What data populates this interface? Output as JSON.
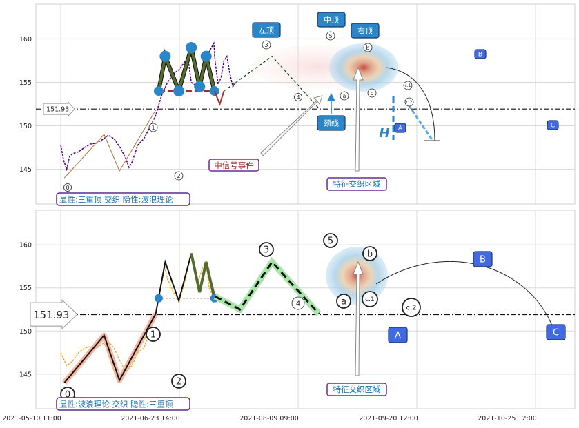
{
  "chart_data": [
    {
      "type": "line",
      "panel": "top",
      "ylim": [
        141,
        164
      ],
      "yticks": [
        145,
        150,
        155,
        160
      ],
      "grid": true,
      "reference_line": {
        "value": 151.93,
        "label": "151.93",
        "style": "dash-dot"
      },
      "series": [
        {
          "values": [
            [
              0,
              147.8
            ],
            [
              0.5,
              146.0
            ],
            [
              1,
              145.0
            ],
            [
              1.5,
              146.5
            ],
            [
              2,
              146.8
            ],
            [
              3,
              147.0
            ],
            [
              4,
              147.5
            ],
            [
              5,
              147.9
            ],
            [
              6,
              148.0
            ],
            [
              7,
              148.4
            ],
            [
              8,
              148.9
            ],
            [
              9,
              148.5
            ],
            [
              10,
              147.5
            ],
            [
              11,
              146.2
            ],
            [
              11.5,
              145.2
            ],
            [
              12,
              145.8
            ],
            [
              13,
              147.8
            ],
            [
              14,
              148.5
            ],
            [
              15,
              149.8
            ],
            [
              16,
              151.2
            ],
            [
              17,
              153.5
            ],
            [
              18,
              155.0
            ],
            [
              19,
              156.0
            ],
            [
              20,
              156.5
            ],
            [
              20.5,
              157.0
            ],
            [
              21,
              157.5
            ],
            [
              21.5,
              157.5
            ],
            [
              22,
              155.0
            ],
            [
              23,
              154.5
            ],
            [
              24,
              156.5
            ],
            [
              25,
              158.5
            ],
            [
              25.8,
              159.5
            ],
            [
              26,
              157.5
            ],
            [
              26.5,
              154.8
            ],
            [
              27,
              155.5
            ],
            [
              27.5,
              157.5
            ],
            [
              28,
              158.0
            ],
            [
              28.5,
              156.0
            ],
            [
              29,
              154.5
            ],
            [
              29.5,
              155.0
            ]
          ]
        },
        {
          "name": "wave",
          "values": [
            [
              0.6,
              144.0
            ],
            [
              7.3,
              149.0
            ],
            [
              9.9,
              144.8
            ],
            [
              16,
              151.8
            ],
            [
              17.6,
              158.0
            ],
            [
              19.9,
              154.0
            ],
            [
              22,
              159.0
            ],
            [
              23.4,
              154.5
            ],
            [
              24.5,
              158.0
            ],
            [
              26,
              154.5
            ]
          ]
        },
        {
          "name": "triple-top",
          "values": [
            [
              16.5,
              154.0
            ],
            [
              17.6,
              158.0
            ],
            [
              19.9,
              154.0
            ],
            [
              22,
              159.0
            ],
            [
              23.4,
              154.5
            ],
            [
              24.5,
              158.0
            ],
            [
              25.9,
              154.0
            ]
          ]
        },
        {
          "name": "projection",
          "values": [
            [
              25.9,
              154.0
            ],
            [
              26.8,
              152.5
            ],
            [
              27.5,
              154.0
            ],
            [
              35.6,
              158.0
            ],
            [
              43.5,
              152.0
            ]
          ]
        }
      ],
      "labels": {
        "wave": [
          "0",
          "1",
          "2",
          "3",
          "4",
          "5",
          "a",
          "b",
          "c",
          "c.1",
          "c.2"
        ],
        "boxes": [
          "左顶",
          "中顶",
          "右顶",
          "颈线",
          "A",
          "B",
          "C",
          "H"
        ],
        "annotations": [
          "中信号事件",
          "特征交织区域"
        ],
        "caption": "显性:三重顶 交织 隐性:波浪理论"
      }
    },
    {
      "type": "line",
      "panel": "bottom",
      "ylim": [
        141,
        164
      ],
      "yticks": [
        145,
        150,
        155,
        160
      ],
      "grid": true,
      "reference_line": {
        "value": 151.93,
        "label": "151.93",
        "style": "dash-dot"
      },
      "x_axis": {
        "tick_labels": [
          "2021-05-10 11:00",
          "2021-06-23 14:00",
          "2021-08-09 09:00",
          "2021-09-20 12:00",
          "2021-10-25 12:00"
        ]
      },
      "series": [
        {
          "values": [
            [
              0,
              147.5
            ],
            [
              1,
              146.0
            ],
            [
              2,
              146.5
            ],
            [
              3,
              147.5
            ],
            [
              4,
              148.0
            ],
            [
              5,
              148.2
            ],
            [
              6,
              148.0
            ],
            [
              7,
              148.5
            ],
            [
              8,
              148.8
            ],
            [
              9,
              148.0
            ],
            [
              10,
              146.5
            ],
            [
              11,
              145.2
            ],
            [
              12,
              146.0
            ],
            [
              13,
              147.5
            ],
            [
              14,
              148.0
            ],
            [
              15,
              150.0
            ],
            [
              16,
              152.0
            ],
            [
              17,
              155.5
            ],
            [
              17.5,
              157.5
            ],
            [
              18,
              156.0
            ],
            [
              19,
              154.5
            ],
            [
              20,
              153.5
            ],
            [
              21,
              156.0
            ],
            [
              22,
              159.0
            ],
            [
              23,
              155.5
            ],
            [
              24,
              157.5
            ],
            [
              24.5,
              158.0
            ],
            [
              25,
              155.0
            ],
            [
              25.8,
              153.8
            ]
          ]
        },
        {
          "name": "wave",
          "values": [
            [
              0.6,
              144.0
            ],
            [
              7.3,
              149.5
            ],
            [
              9.9,
              144.3
            ],
            [
              16,
              152.0
            ],
            [
              17.6,
              158.0
            ],
            [
              19.9,
              153.5
            ],
            [
              22,
              159.0
            ],
            [
              23.4,
              154.5
            ],
            [
              24.5,
              158.0
            ],
            [
              26,
              154.0
            ],
            [
              30.2,
              152.5
            ],
            [
              35.6,
              158.0
            ],
            [
              43.5,
              152.0
            ]
          ]
        },
        {
          "name": "triple-top",
          "values": [
            [
              16.5,
              153.8
            ],
            [
              17.6,
              158.0
            ],
            [
              19.9,
              153.5
            ],
            [
              22,
              159.0
            ],
            [
              23.4,
              154.5
            ],
            [
              24.5,
              158.0
            ],
            [
              25.9,
              153.8
            ]
          ]
        }
      ],
      "labels": {
        "wave": [
          "0",
          "1",
          "2",
          "3",
          "4",
          "5",
          "a",
          "b",
          "c.1",
          "c.2",
          "B",
          "C",
          "A"
        ],
        "annotations": [
          "特征交织区域"
        ],
        "caption": "显性:波浪理论 交织 隐性:三重顶"
      }
    }
  ],
  "colors": {
    "price_top": "#4b0082",
    "price_bottom": "#e8b030",
    "wave_line": "#556b2f",
    "neckline": "#a52a2a",
    "box_blue": "#2a86c8",
    "box_purple": "#4169e1",
    "projection": "#228b22"
  }
}
